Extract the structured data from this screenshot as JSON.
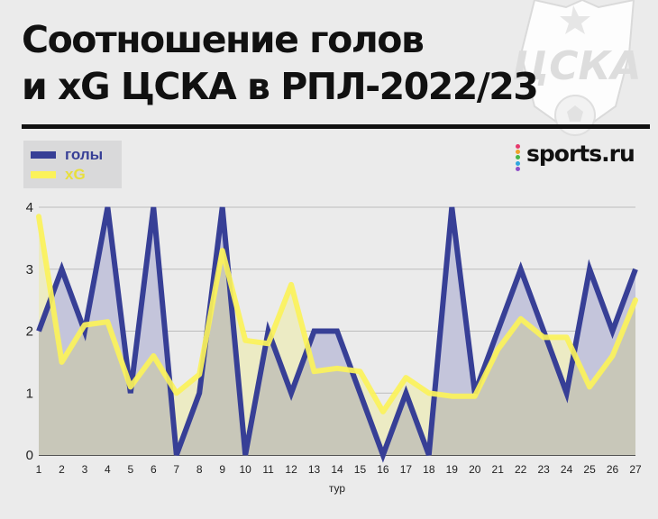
{
  "title_lines": [
    "Соотношение голов",
    "и xG ЦСКА в РПЛ-2022/23"
  ],
  "brand": "sports.ru",
  "crest_text": "ЦСКА",
  "colors": {
    "goals": "#373f96",
    "xg": "#fbf25a",
    "goals_fill": "#c4c5db",
    "xg_fill": "#ecebc4",
    "overlap_fill": "#c8c7b9",
    "legend_bg": "#d9d9da",
    "grid": "#bdbdbd",
    "background": "#ebebeb"
  },
  "chart_data": {
    "type": "line",
    "title": "Соотношение голов и xG ЦСКА в РПЛ-2022/23",
    "xlabel": "тур",
    "ylabel": "",
    "x": [
      1,
      2,
      3,
      4,
      5,
      6,
      7,
      8,
      9,
      10,
      11,
      12,
      13,
      14,
      15,
      16,
      17,
      18,
      19,
      20,
      21,
      22,
      23,
      24,
      25,
      26,
      27
    ],
    "ylim": [
      0,
      4
    ],
    "yticks": [
      0,
      1,
      2,
      3,
      4
    ],
    "grid": true,
    "legend_position": "top-left",
    "series": [
      {
        "name": "голы",
        "color": "#373f96",
        "values": [
          2,
          3,
          2,
          4,
          1,
          4,
          0,
          1,
          4,
          0,
          2,
          1,
          2,
          2,
          1,
          0,
          1,
          0,
          4,
          1,
          2,
          3,
          2,
          1,
          3,
          2,
          3
        ]
      },
      {
        "name": "xG",
        "color": "#fbf25a",
        "values": [
          3.85,
          1.5,
          2.1,
          2.15,
          1.1,
          1.6,
          1.0,
          1.3,
          3.3,
          1.85,
          1.8,
          2.75,
          1.35,
          1.4,
          1.35,
          0.7,
          1.25,
          1.0,
          0.95,
          0.95,
          1.7,
          2.2,
          1.9,
          1.9,
          1.1,
          1.6,
          2.5
        ]
      }
    ]
  }
}
